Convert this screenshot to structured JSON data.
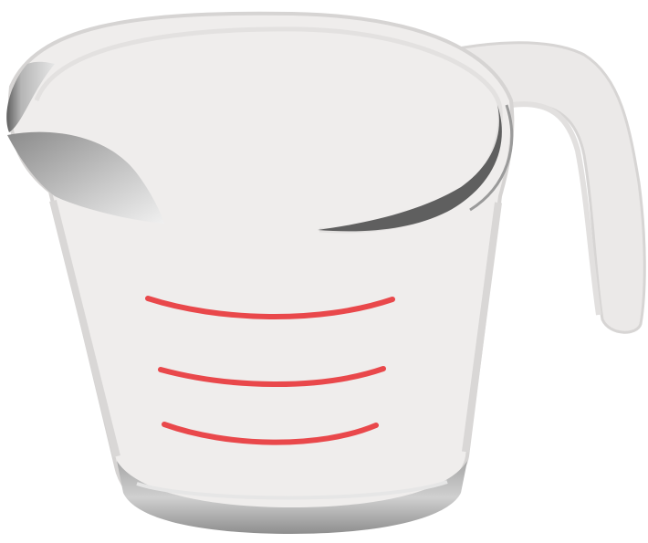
{
  "illustration": {
    "icon": "measuring-cup-icon",
    "colors": {
      "glass_body": "#efedec",
      "glass_edge": "#d8d6d5",
      "glass_shadow": "#a9a8a8",
      "rim_dark": "#6f6f6f",
      "base_dark": "#8a8a8a",
      "measurement_lines": "#e9484b",
      "background": "#ffffff"
    },
    "measurement_line_count": 3
  }
}
